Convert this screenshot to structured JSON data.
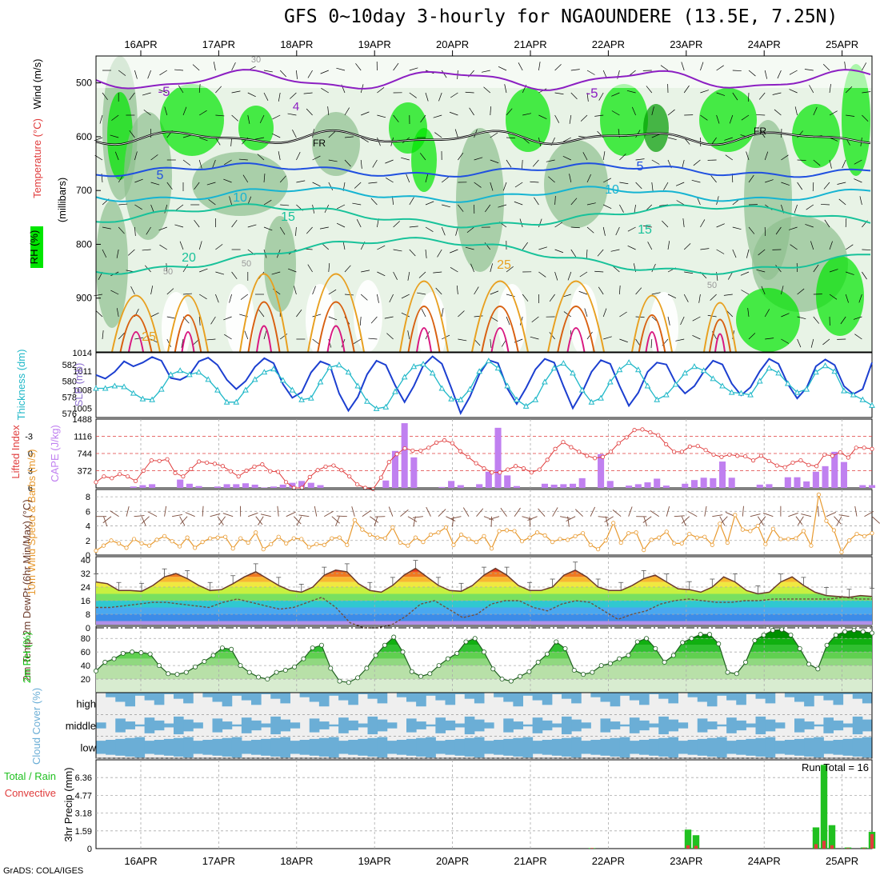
{
  "title": "GFS 0~10day 3-hourly for NGAOUNDERE (13.5E, 7.25N)",
  "credit": "GrADS: COLA/IGES",
  "dates": [
    "16APR",
    "17APR",
    "18APR",
    "19APR",
    "20APR",
    "21APR",
    "22APR",
    "23APR",
    "24APR",
    "25APR"
  ],
  "colors": {
    "rh_dark": "#8fbf8f",
    "rh_green": "#00e600",
    "wind": "#000000",
    "temp_purple": "#8c1fc2",
    "temp_blue": "#2050e0",
    "temp_cyan": "#16b4d2",
    "temp_teal": "#18c29a",
    "temp_orange": "#e8a020",
    "temp_red": "#d86010",
    "temp_magenta": "#d81880",
    "slp": "#1c3fd0",
    "thickness": "#20b8c8",
    "cape": "#c080f0",
    "lifted": "#e03c3c",
    "wind10m": "#e89a30",
    "temp2m": "#6b3a2a",
    "rh2m": "#10c010",
    "cloud": "#6baed6",
    "precip_total": "#20c020",
    "precip_conv": "#e03c3c"
  },
  "chart_data": [
    {
      "type": "heatmap",
      "name": "upper",
      "ylabel_parts": [
        "RH (%)",
        "Temperature (°C)",
        "Wind (m/s)",
        "(millibars)"
      ],
      "ylim": [
        1000,
        450
      ],
      "yticks": [
        "500",
        "600",
        "700",
        "800",
        "900"
      ],
      "contour_labels": [
        "-5",
        "-5",
        "4",
        "FR",
        "FR",
        "5",
        "5",
        "10",
        "10",
        "15",
        "15",
        "20",
        "25",
        "25",
        "30",
        "50",
        "50",
        "50"
      ]
    },
    {
      "type": "line",
      "name": "slp_thickness",
      "ylabel_left": "Thickness (dm)",
      "ylabel_right": "SLP (mb)",
      "left_ticks": [
        "582",
        "580",
        "578",
        "576"
      ],
      "right_ticks": [
        "1014",
        "1011",
        "1008",
        "1005"
      ],
      "left_range": [
        575.5,
        583.5
      ],
      "right_range": [
        1003.5,
        1014
      ],
      "series": [
        {
          "name": "SLP (mb)",
          "axis": "right",
          "values": [
            1010.4,
            1009.8,
            1010.9,
            1012.6,
            1011.8,
            1012.4,
            1013.3,
            1012.7,
            1009.9,
            1009.6,
            1010.4,
            1012.6,
            1013.2,
            1012.0,
            1009.6,
            1008.1,
            1009.4,
            1011.7,
            1013.1,
            1012.3,
            1008.9,
            1006.7,
            1007.6,
            1010.8,
            1012.6,
            1012.0,
            1007.4,
            1004.6,
            1006.8,
            1010.5,
            1012.7,
            1012.0,
            1008.7,
            1006.0,
            1008.6,
            1011.9,
            1013.4,
            1012.2,
            1008.3,
            1004.2,
            1006.9,
            1010.5,
            1012.8,
            1012.3,
            1008.2,
            1005.7,
            1008.3,
            1011.3,
            1013.0,
            1012.4,
            1008.6,
            1005.0,
            1007.6,
            1010.9,
            1012.8,
            1012.2,
            1008.6,
            1005.4,
            1007.5,
            1010.9,
            1012.4,
            1012.1,
            1009.1,
            1007.4,
            1008.6,
            1010.9,
            1012.7,
            1012.1,
            1009.0,
            1007.1,
            1008.4,
            1011.0,
            1013.0,
            1012.2,
            1008.9,
            1006.6,
            1008.3,
            1011.8,
            1012.9,
            1012.0,
            1008.6,
            1007.3,
            1008.1,
            1012.4
          ]
        },
        {
          "name": "Thickness (dm)",
          "axis": "left",
          "values": [
            579.1,
            579.1,
            579.4,
            579.3,
            578.5,
            577.8,
            577.7,
            579.0,
            580.8,
            581.3,
            580.8,
            581.1,
            580.2,
            578.9,
            577.4,
            577.4,
            578.9,
            580.2,
            581.1,
            581.5,
            580.1,
            578.9,
            577.7,
            577.9,
            579.9,
            581.7,
            582.0,
            581.1,
            579.4,
            577.5,
            576.6,
            576.8,
            578.7,
            580.5,
            581.8,
            582.1,
            581.0,
            579.1,
            577.8,
            577.7,
            579.0,
            581.2,
            582.5,
            581.6,
            579.4,
            577.7,
            576.9,
            577.7,
            579.9,
            581.6,
            582.2,
            581.0,
            578.9,
            577.4,
            577.9,
            579.9,
            581.4,
            582.3,
            581.4,
            579.4,
            577.7,
            578.3,
            579.6,
            581.0,
            581.8,
            581.3,
            580.3,
            579.4,
            578.6,
            578.5,
            578.3,
            580.0,
            581.6,
            581.0,
            579.7,
            578.6,
            579.0,
            581.1,
            581.9,
            581.2,
            578.8,
            578.3,
            577.7,
            577.0
          ]
        }
      ]
    },
    {
      "type": "bar",
      "name": "cape_li",
      "ylabel_left": "Lifted Index",
      "ylabel_right": "CAPE (J/kg)",
      "left_ticks": [
        "-3",
        "0",
        "3",
        "6"
      ],
      "right_ticks": [
        "1488",
        "1116",
        "744",
        "372"
      ],
      "cape_range": [
        0,
        1488
      ],
      "li_range": [
        -6,
        6
      ],
      "series": [
        {
          "name": "CAPE (J/kg)",
          "values": [
            0,
            0,
            0,
            0,
            30,
            60,
            80,
            0,
            0,
            180,
            90,
            40,
            0,
            30,
            80,
            80,
            100,
            70,
            10,
            30,
            70,
            110,
            150,
            110,
            60,
            0,
            0,
            0,
            0,
            0,
            0,
            160,
            800,
            1400,
            660,
            0,
            0,
            20,
            150,
            60,
            0,
            80,
            350,
            1300,
            270,
            40,
            0,
            0,
            90,
            70,
            80,
            90,
            210,
            0,
            730,
            150,
            0,
            50,
            80,
            120,
            200,
            50,
            0,
            90,
            170,
            220,
            210,
            570,
            220,
            0,
            0,
            70,
            80,
            0,
            230,
            230,
            140,
            350,
            470,
            780,
            560,
            0,
            60,
            60
          ]
        },
        {
          "name": "Lifted Index",
          "values": [
            5.0,
            4.0,
            4.3,
            3.6,
            4.0,
            4.8,
            3.0,
            1.2,
            1.3,
            1.0,
            3.4,
            4.0,
            2.7,
            1.4,
            1.6,
            1.8,
            2.2,
            3.1,
            4.0,
            3.0,
            2.3,
            1.9,
            3.1,
            3.2,
            5.0,
            6.0,
            6.0,
            4.1,
            2.9,
            2.3,
            2.1,
            2.9,
            4.0,
            5.4,
            6.0,
            6.2,
            4.2,
            1.5,
            0.1,
            -0.9,
            -0.5,
            -0.5,
            -1.0,
            -1.9,
            -2.3,
            -1.8,
            -0.4,
            0.6,
            1.7,
            2.6,
            3.3,
            3.3,
            2.8,
            2.2,
            2.6,
            3.3,
            2.8,
            1.1,
            -0.8,
            -2.0,
            -1.1,
            -0.3,
            0.4,
            0.8,
            0.6,
            -0.3,
            -1.8,
            -2.8,
            -4.1,
            -4.2,
            -3.7,
            -3.2,
            -1.6,
            -0.3,
            -0.3,
            -1.2,
            -1.3,
            -0.6,
            0.2,
            0.6,
            0.2,
            0.4,
            0.5,
            1.2,
            0.4,
            1.3,
            2.1,
            2.4,
            1.6,
            1.2,
            2.0,
            2.2,
            0.2,
            0.4,
            -0.2,
            0.7,
            -1.0,
            -1.0,
            -0.8
          ]
        }
      ]
    },
    {
      "type": "line",
      "name": "wind10m",
      "ylabel": "10m Wind Speed & Barbs (m/s)",
      "yticks": [
        "8",
        "6",
        "4",
        "2",
        "0"
      ],
      "ylim": [
        0,
        9
      ],
      "series": [
        {
          "name": "10m Wind Speed",
          "values": [
            0.6,
            1.3,
            2.0,
            1.6,
            1.0,
            2.2,
            1.6,
            1.3,
            2.1,
            2.6,
            1.9,
            1.2,
            2.4,
            1.0,
            1.8,
            2.3,
            2.4,
            2.5,
            0.9,
            2.3,
            1.7,
            3.1,
            0.8,
            1.5,
            2.5,
            1.6,
            2.3,
            2.2,
            1.1,
            1.5,
            1.4,
            2.3,
            2.4,
            1.4,
            4.8,
            3.5,
            2.8,
            2.4,
            2.3,
            3.8,
            1.7,
            1.3,
            2.4,
            1.8,
            2.8,
            3.1,
            3.8,
            1.4,
            2.8,
            2.2,
            1.8,
            2.6,
            0.9,
            3.3,
            3.4,
            3.3,
            1.9,
            2.4,
            3.1,
            2.7,
            1.8,
            2.2,
            2.1,
            2.6,
            3.0,
            1.4,
            0.8,
            2.0,
            4.4,
            1.7,
            3.0,
            3.1,
            0.7,
            2.1,
            2.4,
            3.2,
            1.6,
            1.6,
            2.9,
            2.4,
            2.5,
            1.4,
            4.3,
            1.7,
            5.5,
            3.5,
            3.3,
            4.0,
            1.5,
            3.6,
            2.2,
            2.2,
            2.3,
            3.3,
            1.3,
            8.3,
            4.7,
            3.4,
            0.4,
            2.0,
            2.9,
            2.6,
            3.0
          ]
        }
      ]
    },
    {
      "type": "area",
      "name": "temp2m",
      "ylabel": "2m Temp 2m DewPt (6hr Min/Max) (°C)",
      "yticks": [
        "40",
        "32",
        "24",
        "16",
        "8",
        "0"
      ],
      "ylim": [
        0,
        40
      ],
      "series": [
        {
          "name": "2m Temp",
          "values": [
            27.0,
            26.0,
            22.0,
            22.0,
            21.5,
            25.0,
            30.0,
            32.0,
            29.0,
            25.0,
            22.0,
            22.5,
            26.0,
            30.0,
            33.0,
            29.0,
            25.0,
            22.0,
            21.0,
            24.0,
            31.0,
            34.0,
            33.0,
            26.0,
            22.0,
            21.0,
            25.0,
            31.0,
            35.0,
            30.0,
            25.0,
            22.0,
            21.5,
            25.0,
            31.0,
            35.0,
            31.0,
            25.0,
            22.0,
            22.0,
            24.0,
            31.0,
            34.0,
            30.0,
            24.0,
            22.0,
            22.0,
            25.0,
            29.0,
            31.0,
            27.0,
            23.0,
            22.5,
            21.0,
            24.0,
            30.0,
            27.0,
            22.0,
            20.0,
            21.0,
            27.0,
            30.0,
            25.0,
            21.0,
            19.0,
            18.5,
            18.0,
            19.0,
            18.5
          ]
        },
        {
          "name": "2m DewPt",
          "values": [
            12,
            12,
            13,
            14,
            15,
            15,
            14,
            13,
            12,
            15,
            17,
            15,
            13,
            11,
            12,
            15,
            18,
            12,
            3,
            0,
            0,
            2,
            7,
            14,
            16,
            11,
            6,
            8,
            14,
            16,
            16,
            12,
            10,
            14,
            16,
            15,
            10,
            5,
            8,
            10,
            14,
            16,
            17,
            16,
            15,
            15,
            16,
            16,
            17,
            17,
            17,
            17,
            17,
            18,
            17,
            17
          ]
        }
      ]
    },
    {
      "type": "area",
      "name": "rh2m",
      "ylabel": "2m RH (%)",
      "yticks": [
        "80",
        "60",
        "40",
        "20"
      ],
      "ylim": [
        0,
        98
      ],
      "series": [
        {
          "name": "2m RH",
          "values": [
            32,
            45,
            50,
            58,
            60,
            59,
            57,
            40,
            28,
            27,
            30,
            38,
            46,
            55,
            66,
            64,
            40,
            30,
            23,
            20,
            30,
            33,
            38,
            50,
            66,
            70,
            36,
            17,
            15,
            22,
            36,
            55,
            70,
            82,
            60,
            31,
            24,
            28,
            40,
            50,
            58,
            75,
            80,
            60,
            35,
            20,
            17,
            24,
            31,
            45,
            57,
            75,
            65,
            33,
            27,
            30,
            40,
            43,
            50,
            55,
            75,
            80,
            65,
            45,
            55,
            74,
            80,
            86,
            86,
            72,
            30,
            28,
            45,
            77,
            85,
            92,
            93,
            85,
            65,
            42,
            35,
            70,
            85,
            90,
            92,
            90,
            88
          ]
        }
      ]
    },
    {
      "type": "bar",
      "name": "cloud",
      "ylabel": "Cloud Cover (%)",
      "levels": [
        "high",
        "middle",
        "low"
      ]
    },
    {
      "type": "bar",
      "name": "precip",
      "ylabel_left": "3hr Precip (mm)",
      "legend": [
        "Total / Rain",
        "Convective"
      ],
      "yticks": [
        "6.36",
        "4.77",
        "3.18",
        "1.59",
        "0"
      ],
      "ylim": [
        0,
        7.95
      ],
      "run_total": "Run Total = 16",
      "series": [
        {
          "name": "Total",
          "values": [
            0,
            0,
            0,
            0,
            0,
            0,
            0,
            0,
            0,
            0,
            0,
            0,
            0,
            0,
            0,
            0,
            0,
            0,
            0,
            0,
            0,
            0,
            0,
            0,
            0,
            0,
            0,
            0,
            0,
            0,
            0,
            0,
            0,
            0,
            0,
            0,
            0,
            0,
            0,
            0,
            0,
            0,
            0,
            0,
            0,
            0,
            0,
            0,
            0,
            0,
            0,
            0,
            0,
            0,
            0,
            0,
            0,
            0,
            0,
            0,
            0,
            0,
            0.05,
            0,
            0,
            0,
            0,
            0,
            0,
            0,
            0,
            0,
            0,
            0,
            1.7,
            1.2,
            0,
            0,
            0,
            0,
            0,
            0,
            0,
            0,
            0,
            0,
            0,
            0,
            0,
            0,
            1.9,
            7.5,
            2.1,
            0,
            0.1,
            0,
            0.1,
            1.5
          ]
        },
        {
          "name": "Convective",
          "values": [
            0,
            0,
            0,
            0,
            0,
            0,
            0,
            0,
            0,
            0,
            0,
            0,
            0,
            0,
            0,
            0,
            0,
            0,
            0,
            0,
            0,
            0,
            0,
            0,
            0,
            0,
            0,
            0,
            0,
            0,
            0,
            0,
            0,
            0,
            0,
            0,
            0,
            0,
            0,
            0,
            0,
            0,
            0,
            0,
            0,
            0,
            0,
            0,
            0,
            0,
            0,
            0,
            0,
            0,
            0,
            0,
            0,
            0,
            0,
            0,
            0,
            0,
            0.05,
            0,
            0,
            0,
            0,
            0,
            0,
            0,
            0,
            0,
            0,
            0,
            0.3,
            0.25,
            0,
            0,
            0,
            0,
            0,
            0,
            0,
            0,
            0,
            0,
            0,
            0,
            0,
            0,
            0.4,
            0.7,
            0.3,
            0,
            0.05,
            0,
            0.05,
            1.3
          ]
        }
      ]
    }
  ]
}
